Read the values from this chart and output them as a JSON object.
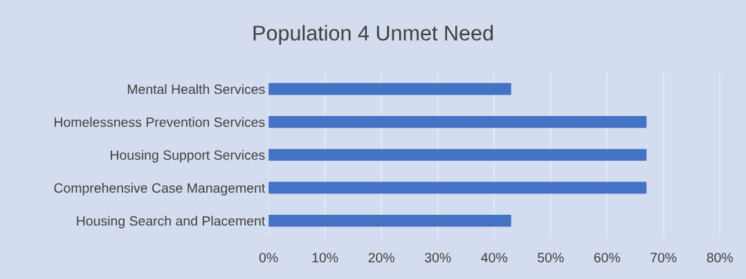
{
  "chart_data": {
    "type": "bar",
    "orientation": "horizontal",
    "title": "Population 4 Unmet Need",
    "categories": [
      "Mental Health Services",
      "Homelessness Prevention Services",
      "Housing Support Services",
      "Comprehensive Case Management",
      "Housing Search and Placement"
    ],
    "values": [
      43,
      67,
      67,
      67,
      43
    ],
    "color": "#4472c4",
    "xlim": [
      0,
      80
    ],
    "xticks": [
      {
        "value": 0,
        "label": "0%"
      },
      {
        "value": 10,
        "label": "10%"
      },
      {
        "value": 20,
        "label": "20%"
      },
      {
        "value": 30,
        "label": "30%"
      },
      {
        "value": 40,
        "label": "40%"
      },
      {
        "value": 50,
        "label": "50%"
      },
      {
        "value": 60,
        "label": "60%"
      },
      {
        "value": 70,
        "label": "70%"
      },
      {
        "value": 80,
        "label": "80%"
      }
    ],
    "grid": "x",
    "legend": false
  }
}
